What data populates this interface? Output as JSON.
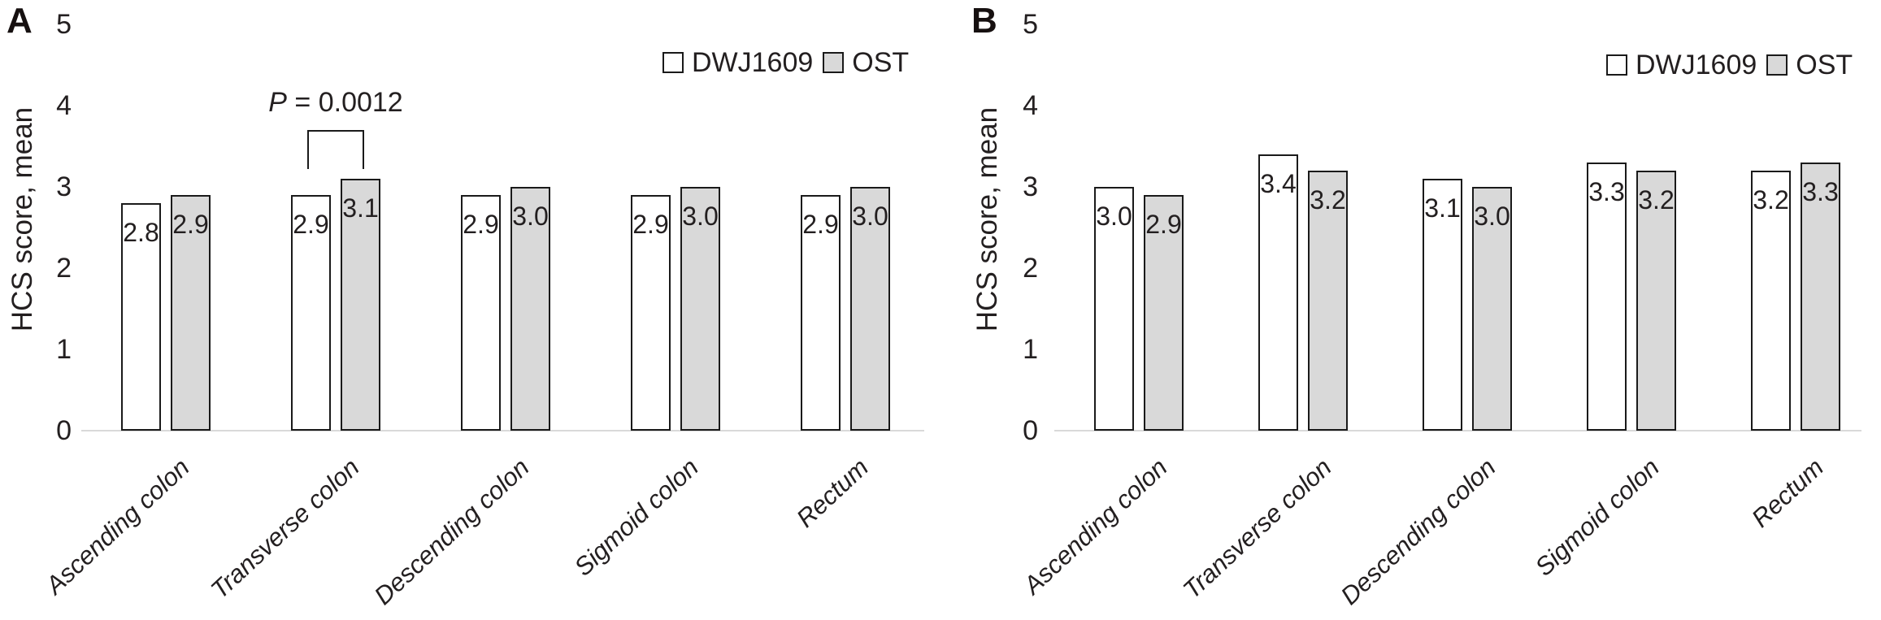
{
  "figure": {
    "background": "#ffffff",
    "text_color": "#231f20",
    "axis_line_color": "#d9d9d9",
    "bar_border_color": "#1a1a1a",
    "series_colors": {
      "DWJ1609": "#ffffff",
      "OST": "#d9d9d9"
    }
  },
  "legend": {
    "items": [
      {
        "label": "DWJ1609",
        "fill": "#ffffff"
      },
      {
        "label": "OST",
        "fill": "#d9d9d9"
      }
    ]
  },
  "chart_data": [
    {
      "panel": "A",
      "type": "bar",
      "title": "",
      "xlabel": "",
      "ylabel": "HCS score, mean",
      "ylim": [
        0,
        5
      ],
      "yticks": [
        0,
        1,
        2,
        3,
        4,
        5
      ],
      "grid": false,
      "legend_position": "top-right",
      "categories": [
        "Ascending colon",
        "Transverse colon",
        "Descending colon",
        "Sigmoid colon",
        "Rectum"
      ],
      "series": [
        {
          "name": "DWJ1609",
          "values": [
            2.8,
            2.9,
            2.9,
            2.9,
            2.9
          ]
        },
        {
          "name": "OST",
          "values": [
            2.9,
            3.1,
            3.0,
            3.0,
            3.0
          ]
        }
      ],
      "annotation": {
        "text": "P = 0.0012",
        "p_italic": "P",
        "p_rest": " = 0.0012",
        "category": "Transverse colon"
      }
    },
    {
      "panel": "B",
      "type": "bar",
      "title": "",
      "xlabel": "",
      "ylabel": "HCS score, mean",
      "ylim": [
        0,
        5
      ],
      "yticks": [
        0,
        1,
        2,
        3,
        4,
        5
      ],
      "grid": false,
      "legend_position": "top-right",
      "categories": [
        "Ascending colon",
        "Transverse colon",
        "Descending colon",
        "Sigmoid colon",
        "Rectum"
      ],
      "series": [
        {
          "name": "DWJ1609",
          "values": [
            3.0,
            3.4,
            3.1,
            3.3,
            3.2
          ]
        },
        {
          "name": "OST",
          "values": [
            2.9,
            3.2,
            3.0,
            3.2,
            3.3
          ]
        }
      ],
      "annotation": null
    }
  ]
}
